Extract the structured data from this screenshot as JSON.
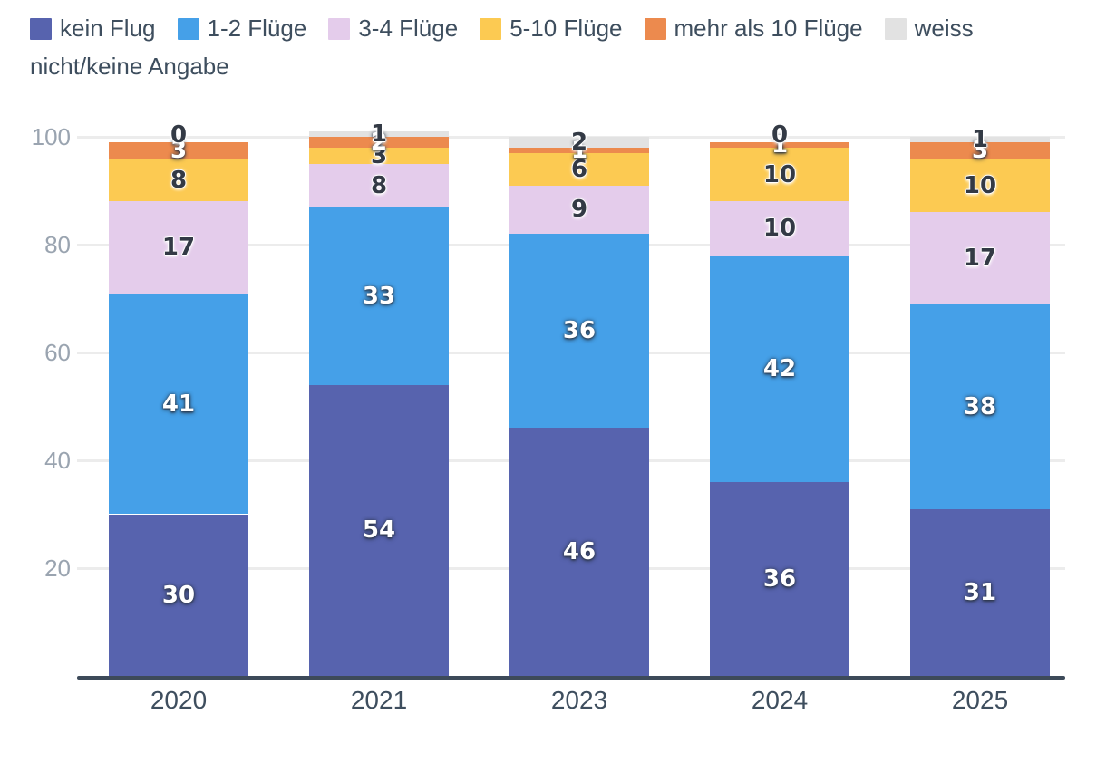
{
  "legend": {
    "items": [
      {
        "label": "kein Flug",
        "color": "#5763AE"
      },
      {
        "label": "1-2 Flüge",
        "color": "#45A0E8"
      },
      {
        "label": "3-4 Flüge",
        "color": "#E4CCEB"
      },
      {
        "label": "5-10 Flüge",
        "color": "#FCCA52"
      },
      {
        "label": "mehr als 10 Flüge",
        "color": "#EC8A4E"
      },
      {
        "label": "weiss nicht/keine Angabe",
        "color": "#E2E2E2"
      }
    ]
  },
  "chart_data": {
    "type": "bar",
    "stacked": true,
    "title": "",
    "categories": [
      "2020",
      "2021",
      "2023",
      "2024",
      "2025"
    ],
    "series": [
      {
        "name": "kein Flug",
        "color": "#5763AE",
        "label_style": "light",
        "values": [
          30,
          54,
          46,
          36,
          31
        ]
      },
      {
        "name": "1-2 Flüge",
        "color": "#45A0E8",
        "label_style": "light",
        "values": [
          41,
          33,
          36,
          42,
          38
        ]
      },
      {
        "name": "3-4 Flüge",
        "color": "#E4CCEB",
        "label_style": "dark",
        "values": [
          17,
          8,
          9,
          10,
          17
        ]
      },
      {
        "name": "5-10 Flüge",
        "color": "#FCCA52",
        "label_style": "dark",
        "values": [
          8,
          3,
          6,
          10,
          10
        ]
      },
      {
        "name": "mehr als 10 Flüge",
        "color": "#EC8A4E",
        "label_style": "light",
        "values": [
          3,
          2,
          1,
          1,
          3
        ]
      },
      {
        "name": "weiss nicht/keine Angabe",
        "color": "#E2E2E2",
        "label_style": "dark",
        "values": [
          0,
          1,
          2,
          0,
          1
        ]
      }
    ],
    "ylim": [
      0,
      100
    ],
    "yticks": [
      20,
      40,
      60,
      80,
      100
    ],
    "grid": true,
    "legend_position": "top",
    "xlabel": "",
    "ylabel": "",
    "colors": {
      "axis_line": "#3D4A59",
      "grid_line": "#ECECEC",
      "tick_label": "#9AA4B0",
      "category_label": "#3E4E5E",
      "legend_text": "#3E4E5E",
      "background": "#FFFFFF"
    }
  }
}
